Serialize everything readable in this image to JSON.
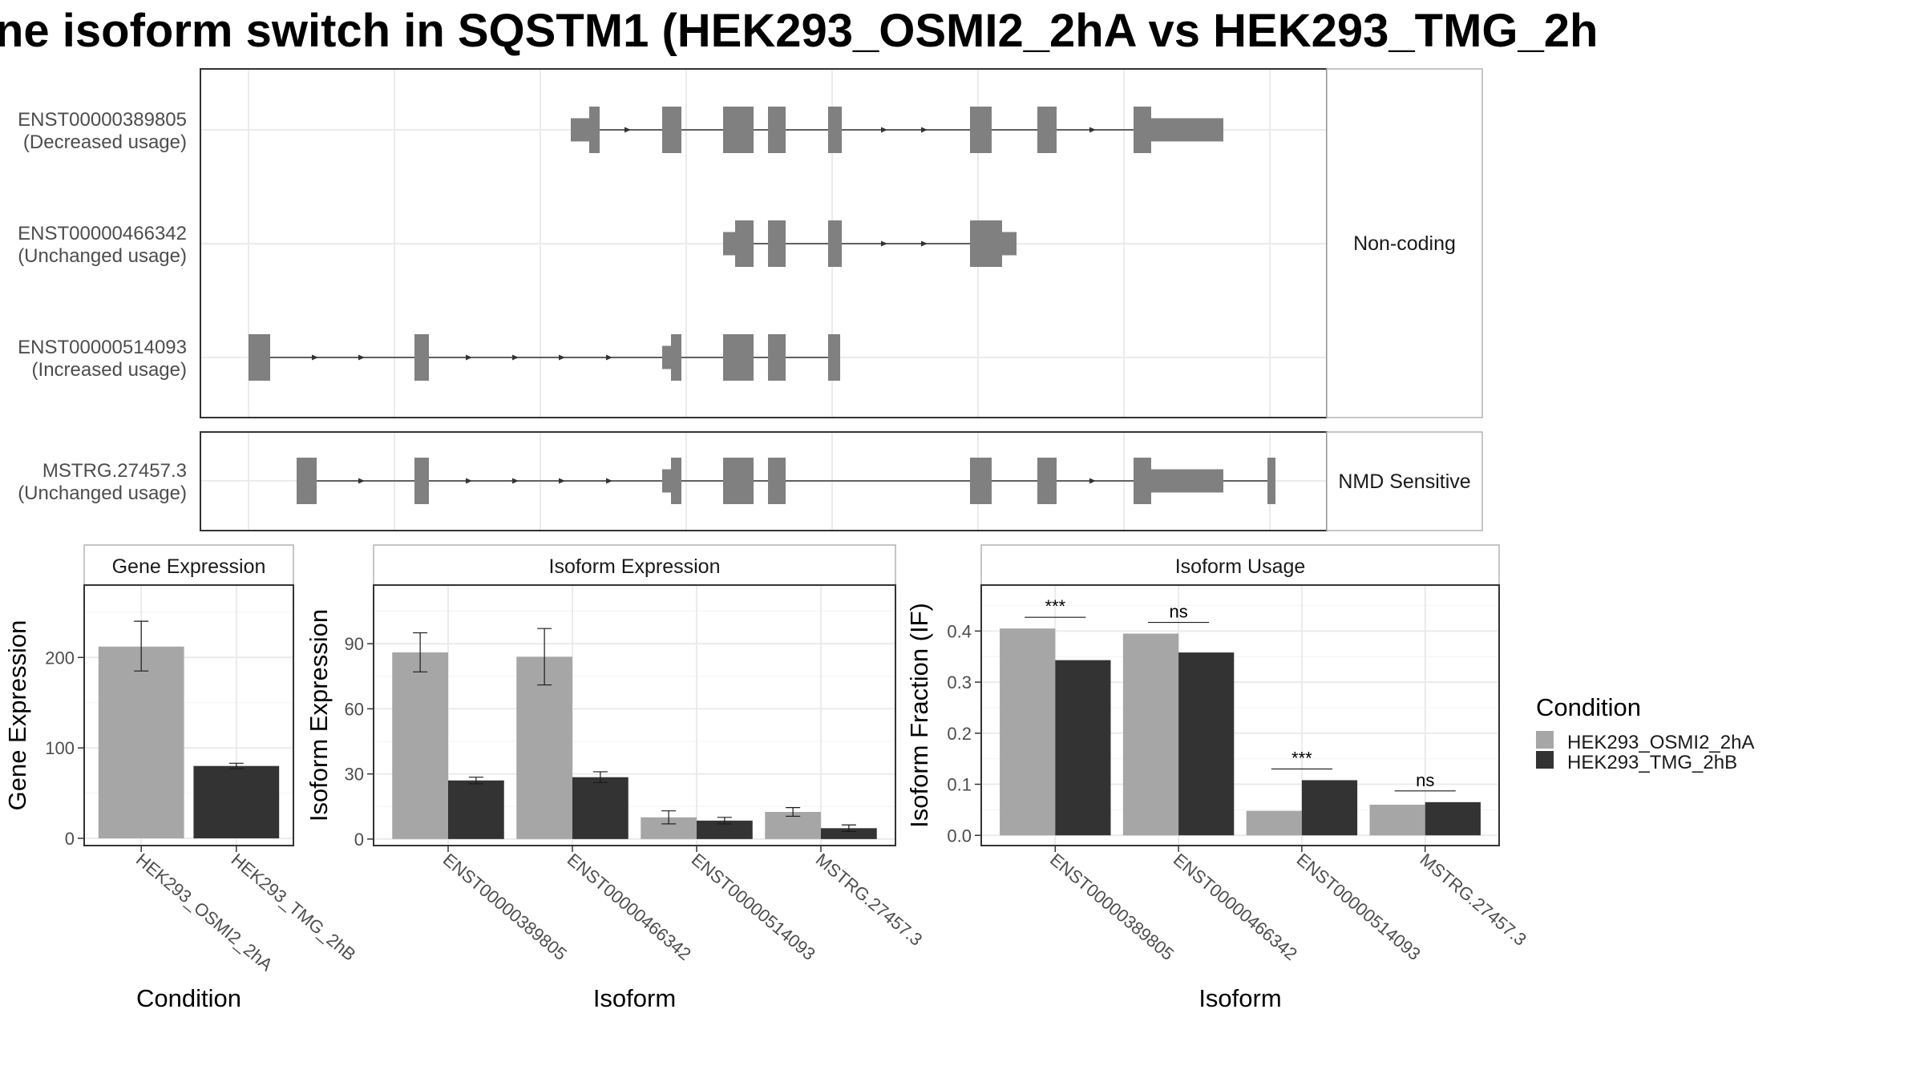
{
  "chart_data": [
    {
      "type": "transcript-structure",
      "title": "ne isoform switch in SQSTM1 (HEK293_OSMI2_2hA vs HEK293_TMG_2h",
      "groups": [
        {
          "label": "Non-coding",
          "transcripts": [
            {
              "id": "ENST00000389805",
              "usage": "(Decreased usage)"
            },
            {
              "id": "ENST00000466342",
              "usage": "(Unchanged usage)"
            },
            {
              "id": "ENST00000514093",
              "usage": "(Increased usage)"
            }
          ]
        },
        {
          "label": "NMD Sensitive",
          "transcripts": [
            {
              "id": "MSTRG.27457.3",
              "usage": "(Unchanged usage)"
            }
          ]
        }
      ],
      "exon_color": "#808080"
    },
    {
      "type": "bar",
      "panel": "Gene Expression",
      "categories": [
        "HEK293_OSMI2_2hA",
        "HEK293_TMG_2hB"
      ],
      "values": [
        212,
        80
      ],
      "errors": [
        [
          185,
          240
        ],
        [
          77,
          83
        ]
      ],
      "xlabel": "Condition",
      "ylabel": "Gene Expression",
      "ylim": [
        -8,
        280
      ],
      "yticks": [
        0,
        100,
        200
      ],
      "grid": true
    },
    {
      "type": "bar",
      "panel": "Isoform Expression",
      "categories": [
        "ENST00000389805",
        "ENST00000466342",
        "ENST00000514093",
        "MSTRG.27457.3"
      ],
      "series": [
        {
          "name": "HEK293_OSMI2_2hA",
          "values": [
            86,
            84,
            10,
            12.5
          ],
          "errors": [
            [
              77,
              95
            ],
            [
              71,
              97
            ],
            [
              7,
              13
            ],
            [
              10.5,
              14.5
            ]
          ]
        },
        {
          "name": "HEK293_TMG_2hB",
          "values": [
            27,
            28.5,
            8.5,
            5
          ],
          "errors": [
            [
              25.5,
              28.5
            ],
            [
              26,
              31
            ],
            [
              7,
              10
            ],
            [
              3.5,
              6.5
            ]
          ]
        }
      ],
      "xlabel": "Isoform",
      "ylabel": "Isoform Expression",
      "ylim": [
        -3,
        117
      ],
      "yticks": [
        0,
        30,
        60,
        90
      ],
      "grid": true
    },
    {
      "type": "bar",
      "panel": "Isoform Usage",
      "categories": [
        "ENST00000389805",
        "ENST00000466342",
        "ENST00000514093",
        "MSTRG.27457.3"
      ],
      "series": [
        {
          "name": "HEK293_OSMI2_2hA",
          "values": [
            0.405,
            0.395,
            0.048,
            0.06
          ]
        },
        {
          "name": "HEK293_TMG_2hB",
          "values": [
            0.343,
            0.358,
            0.108,
            0.065
          ]
        }
      ],
      "significance": [
        "***",
        "ns",
        "***",
        "ns"
      ],
      "xlabel": "Isoform",
      "ylabel": "Isoform Fraction (IF)",
      "ylim": [
        -0.02,
        0.49
      ],
      "yticks": [
        "0.0",
        "0.1",
        "0.2",
        "0.3",
        "0.4"
      ],
      "grid": true
    }
  ],
  "legend": {
    "title": "Condition",
    "entries": [
      {
        "label": "HEK293_OSMI2_2hA",
        "color": "#a6a6a6"
      },
      {
        "label": "HEK293_TMG_2hB",
        "color": "#333333"
      }
    ],
    "placement": "right"
  },
  "colors": {
    "condition_a": "#a6a6a6",
    "condition_b": "#333333",
    "exon": "#808080"
  }
}
